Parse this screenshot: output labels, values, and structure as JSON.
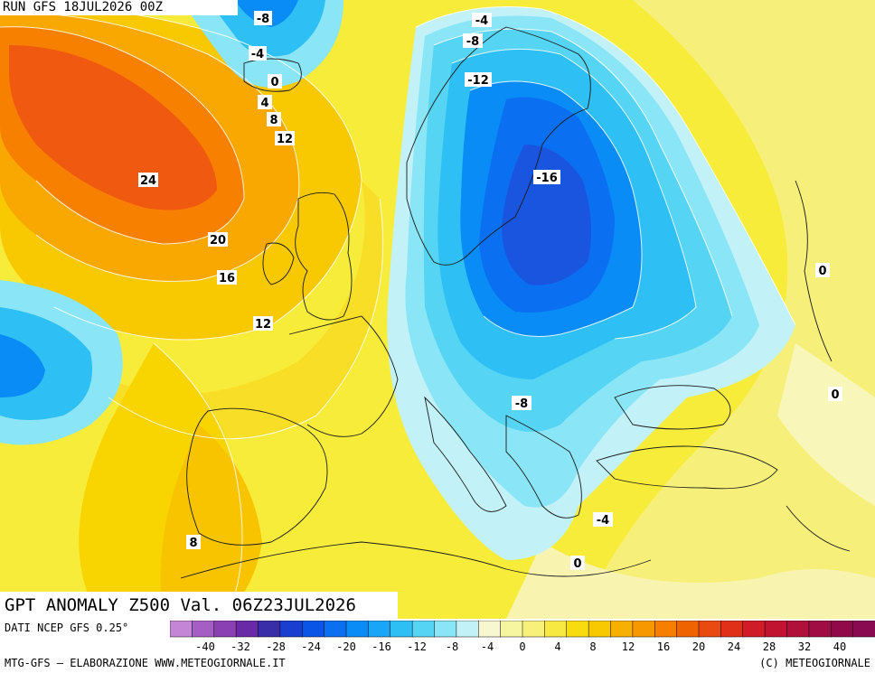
{
  "header": {
    "run": "RUN GFS 18JUL2026 00Z"
  },
  "title": "GPT ANOMALY Z500 Val. 06Z23JUL2026",
  "footer": {
    "data_source": "DATI NCEP GFS 0.25°",
    "credit_left": "MTG-GFS — ELABORAZIONE WWW.METEOGIORNALE.IT",
    "credit_right": "(C) METEOGIORNALE"
  },
  "legend": {
    "tick_labels": [
      "-40",
      "-32",
      "-28",
      "-24",
      "-20",
      "-16",
      "-12",
      "-8",
      "-4",
      "0",
      "4",
      "8",
      "12",
      "16",
      "20",
      "24",
      "28",
      "32",
      "40"
    ],
    "colors": [
      "#c485d6",
      "#a55fc4",
      "#8a3fb3",
      "#6a2aa8",
      "#3a2da8",
      "#1a3fd0",
      "#0a55e6",
      "#0a6ff0",
      "#0a8cf6",
      "#1aa6f6",
      "#2ec0f4",
      "#55d4f4",
      "#8ae6f6",
      "#c2f2f8",
      "#f8f8d0",
      "#f6f6a0",
      "#f8f078",
      "#f8e842",
      "#f8dc10",
      "#f8c800",
      "#f8b000",
      "#f89800",
      "#f87e00",
      "#f06400",
      "#e84a10",
      "#e03018",
      "#d01c28",
      "#c01430",
      "#b0103a",
      "#a00c44",
      "#900a4a",
      "#8a0a52"
    ]
  },
  "contour_labels": [
    {
      "text": "-8"
    },
    {
      "text": "-4"
    },
    {
      "text": "0"
    },
    {
      "text": "4"
    },
    {
      "text": "8"
    },
    {
      "text": "12"
    },
    {
      "text": "24"
    },
    {
      "text": "20"
    },
    {
      "text": "16"
    },
    {
      "text": "12"
    },
    {
      "text": "8"
    },
    {
      "text": "-4"
    },
    {
      "text": "-8"
    },
    {
      "text": "-12"
    },
    {
      "text": "-16"
    },
    {
      "text": "-8"
    },
    {
      "text": "-4"
    },
    {
      "text": "0"
    },
    {
      "text": "0"
    },
    {
      "text": "0"
    }
  ]
}
